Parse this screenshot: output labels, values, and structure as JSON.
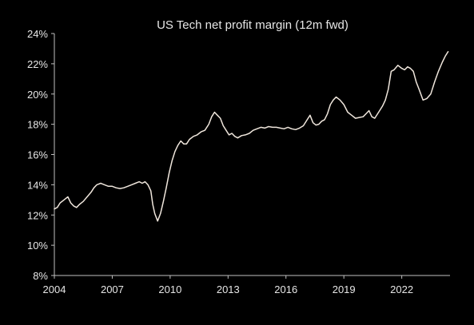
{
  "chart_data": {
    "type": "line",
    "title": "US Tech net profit margin (12m fwd)",
    "xlabel": "",
    "ylabel": "",
    "xlim": [
      2004,
      2024.5
    ],
    "ylim": [
      8,
      24
    ],
    "grid": false,
    "colors": {
      "background": "#000000",
      "line": "#efe6dc",
      "text": "#e6e6e6",
      "axis": "#bfbfbf"
    },
    "x_ticks": [
      2004,
      2007,
      2010,
      2013,
      2016,
      2019,
      2022
    ],
    "x_tick_labels": [
      "2004",
      "2007",
      "2010",
      "2013",
      "2016",
      "2019",
      "2022"
    ],
    "y_ticks": [
      8,
      10,
      12,
      14,
      16,
      18,
      20,
      22,
      24
    ],
    "y_tick_labels": [
      "8%",
      "10%",
      "12%",
      "14%",
      "16%",
      "18%",
      "20%",
      "22%",
      "24%"
    ],
    "series": [
      {
        "x": [
          2004.0,
          2004.15,
          2004.3,
          2004.5,
          2004.7,
          2004.85,
          2005.0,
          2005.15,
          2005.3,
          2005.5,
          2005.7,
          2005.9,
          2006.05,
          2006.2,
          2006.4,
          2006.6,
          2006.8,
          2007.0,
          2007.2,
          2007.4,
          2007.6,
          2007.8,
          2008.0,
          2008.2,
          2008.4,
          2008.55,
          2008.7,
          2008.85,
          2009.0,
          2009.1,
          2009.2,
          2009.35,
          2009.5,
          2009.65,
          2009.8,
          2009.95,
          2010.1,
          2010.25,
          2010.4,
          2010.55,
          2010.7,
          2010.85,
          2011.0,
          2011.2,
          2011.4,
          2011.6,
          2011.8,
          2012.0,
          2012.15,
          2012.3,
          2012.45,
          2012.6,
          2012.75,
          2012.9,
          2013.05,
          2013.2,
          2013.35,
          2013.5,
          2013.7,
          2013.9,
          2014.1,
          2014.3,
          2014.5,
          2014.7,
          2014.9,
          2015.1,
          2015.3,
          2015.5,
          2015.7,
          2015.9,
          2016.1,
          2016.3,
          2016.5,
          2016.7,
          2016.9,
          2017.1,
          2017.25,
          2017.4,
          2017.55,
          2017.7,
          2017.85,
          2018.0,
          2018.15,
          2018.3,
          2018.45,
          2018.6,
          2018.8,
          2019.0,
          2019.2,
          2019.4,
          2019.6,
          2019.8,
          2020.0,
          2020.15,
          2020.3,
          2020.45,
          2020.6,
          2020.8,
          2021.0,
          2021.15,
          2021.3,
          2021.45,
          2021.6,
          2021.8,
          2022.0,
          2022.15,
          2022.3,
          2022.45,
          2022.6,
          2022.75,
          2022.9,
          2023.1,
          2023.3,
          2023.5,
          2023.7,
          2023.9,
          2024.1,
          2024.25,
          2024.4
        ],
        "y": [
          12.4,
          12.5,
          12.8,
          13.0,
          13.2,
          12.8,
          12.6,
          12.5,
          12.7,
          12.9,
          13.2,
          13.5,
          13.8,
          14.0,
          14.1,
          14.0,
          13.9,
          13.9,
          13.8,
          13.75,
          13.8,
          13.9,
          14.0,
          14.1,
          14.2,
          14.1,
          14.2,
          14.0,
          13.6,
          12.7,
          12.1,
          11.6,
          12.1,
          12.9,
          13.8,
          14.8,
          15.6,
          16.2,
          16.6,
          16.9,
          16.7,
          16.7,
          17.0,
          17.2,
          17.3,
          17.5,
          17.6,
          18.0,
          18.5,
          18.8,
          18.6,
          18.4,
          17.9,
          17.6,
          17.3,
          17.4,
          17.2,
          17.1,
          17.25,
          17.3,
          17.4,
          17.6,
          17.7,
          17.8,
          17.75,
          17.85,
          17.8,
          17.8,
          17.75,
          17.7,
          17.8,
          17.7,
          17.65,
          17.75,
          17.9,
          18.3,
          18.6,
          18.1,
          17.95,
          18.0,
          18.2,
          18.3,
          18.7,
          19.3,
          19.6,
          19.8,
          19.6,
          19.3,
          18.8,
          18.6,
          18.4,
          18.45,
          18.5,
          18.7,
          18.9,
          18.5,
          18.4,
          18.8,
          19.2,
          19.6,
          20.3,
          21.5,
          21.6,
          21.9,
          21.7,
          21.6,
          21.8,
          21.7,
          21.5,
          20.8,
          20.3,
          19.6,
          19.7,
          20.0,
          20.8,
          21.5,
          22.1,
          22.5,
          22.8
        ]
      }
    ]
  }
}
